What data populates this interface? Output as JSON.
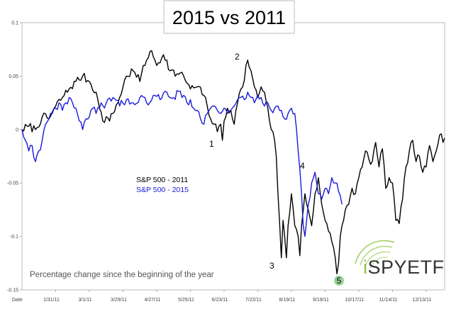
{
  "chart_data": {
    "type": "line",
    "title": "2015 vs 2011",
    "caption": "Percentage change since the beginning of the year",
    "xlabel": "Date",
    "ylabel": "",
    "ylim": [
      -0.15,
      0.1
    ],
    "y_ticks": [
      0.1,
      0.05,
      0,
      -0.05,
      -0.1,
      -0.15
    ],
    "y_tick_labels": [
      "0.1",
      "0.05",
      "0",
      "-0.05",
      "-0.1",
      "-0.15"
    ],
    "x_ticks": [
      "1/31/11",
      "3/1/11",
      "3/29/11",
      "4/27/11",
      "5/25/11",
      "6/23/11",
      "7/22/11",
      "8/19/11",
      "9/19/11",
      "10/17/11",
      "11/14/11",
      "12/13/11"
    ],
    "x_tick_index": [
      20,
      40,
      60,
      80,
      100,
      120,
      140,
      160,
      180,
      200,
      220,
      240
    ],
    "x_count": 252,
    "grid": false,
    "legend_position": "center-left",
    "series": [
      {
        "name": "S&P 500 - 2011",
        "color": "#000000",
        "anchors": [
          [
            0,
            0
          ],
          [
            4,
            0.003
          ],
          [
            8,
            0.0
          ],
          [
            12,
            0.012
          ],
          [
            16,
            0.01
          ],
          [
            20,
            0.022
          ],
          [
            24,
            0.03
          ],
          [
            28,
            0.038
          ],
          [
            32,
            0.045
          ],
          [
            36,
            0.05
          ],
          [
            40,
            0.045
          ],
          [
            44,
            0.035
          ],
          [
            46,
            0.02
          ],
          [
            48,
            0.008
          ],
          [
            50,
            0.012
          ],
          [
            52,
            0.008
          ],
          [
            54,
            0.015
          ],
          [
            58,
            0.03
          ],
          [
            62,
            0.05
          ],
          [
            66,
            0.055
          ],
          [
            70,
            0.045
          ],
          [
            72,
            0.06
          ],
          [
            74,
            0.065
          ],
          [
            76,
            0.073
          ],
          [
            78,
            0.068
          ],
          [
            80,
            0.06
          ],
          [
            84,
            0.07
          ],
          [
            86,
            0.065
          ],
          [
            88,
            0.055
          ],
          [
            92,
            0.052
          ],
          [
            96,
            0.05
          ],
          [
            100,
            0.038
          ],
          [
            104,
            0.04
          ],
          [
            108,
            0.032
          ],
          [
            110,
            0.022
          ],
          [
            112,
            0.01
          ],
          [
            114,
            0.005
          ],
          [
            116,
            -0.002
          ],
          [
            118,
            0.005
          ],
          [
            119,
            -0.01
          ],
          [
            120,
            0.008
          ],
          [
            122,
            0.02
          ],
          [
            124,
            0.018
          ],
          [
            126,
            0.005
          ],
          [
            128,
            0.025
          ],
          [
            130,
            0.038
          ],
          [
            132,
            0.046
          ],
          [
            133,
            0.06
          ],
          [
            134,
            0.065
          ],
          [
            135,
            0.058
          ],
          [
            136,
            0.055
          ],
          [
            138,
            0.04
          ],
          [
            140,
            0.03
          ],
          [
            142,
            0.04
          ],
          [
            144,
            0.035
          ],
          [
            146,
            0.02
          ],
          [
            148,
            0.0
          ],
          [
            150,
            -0.01
          ],
          [
            151,
            -0.025
          ],
          [
            152,
            -0.06
          ],
          [
            153,
            -0.088
          ],
          [
            154,
            -0.12
          ],
          [
            155,
            -0.085
          ],
          [
            156,
            -0.1
          ],
          [
            157,
            -0.12
          ],
          [
            158,
            -0.09
          ],
          [
            160,
            -0.06
          ],
          [
            162,
            -0.09
          ],
          [
            164,
            -0.1
          ],
          [
            165,
            -0.118
          ],
          [
            166,
            -0.09
          ],
          [
            168,
            -0.06
          ],
          [
            170,
            -0.075
          ],
          [
            172,
            -0.09
          ],
          [
            174,
            -0.06
          ],
          [
            176,
            -0.045
          ],
          [
            178,
            -0.07
          ],
          [
            180,
            -0.085
          ],
          [
            182,
            -0.095
          ],
          [
            184,
            -0.105
          ],
          [
            186,
            -0.12
          ],
          [
            187,
            -0.135
          ],
          [
            188,
            -0.125
          ],
          [
            189,
            -0.1
          ],
          [
            190,
            -0.09
          ],
          [
            192,
            -0.075
          ],
          [
            194,
            -0.07
          ],
          [
            196,
            -0.055
          ],
          [
            198,
            -0.06
          ],
          [
            200,
            -0.045
          ],
          [
            202,
            -0.035
          ],
          [
            204,
            -0.02
          ],
          [
            206,
            -0.028
          ],
          [
            208,
            -0.03
          ],
          [
            210,
            -0.012
          ],
          [
            212,
            -0.035
          ],
          [
            214,
            -0.018
          ],
          [
            216,
            -0.055
          ],
          [
            218,
            -0.045
          ],
          [
            220,
            -0.05
          ],
          [
            222,
            -0.085
          ],
          [
            224,
            -0.088
          ],
          [
            226,
            -0.065
          ],
          [
            228,
            -0.035
          ],
          [
            230,
            -0.02
          ],
          [
            232,
            -0.01
          ],
          [
            234,
            -0.03
          ],
          [
            236,
            -0.025
          ],
          [
            238,
            -0.04
          ],
          [
            240,
            -0.035
          ],
          [
            242,
            -0.015
          ],
          [
            244,
            -0.03
          ],
          [
            246,
            -0.02
          ],
          [
            248,
            -0.005
          ],
          [
            249,
            -0.004
          ],
          [
            250,
            -0.012
          ],
          [
            251,
            -0.008
          ]
        ]
      },
      {
        "name": "S&P 500 - 2015",
        "color": "#1a1adb",
        "anchors": [
          [
            0,
            0
          ],
          [
            2,
            -0.01
          ],
          [
            4,
            -0.02
          ],
          [
            6,
            -0.015
          ],
          [
            8,
            -0.03
          ],
          [
            10,
            -0.02
          ],
          [
            12,
            -0.01
          ],
          [
            14,
            0.005
          ],
          [
            16,
            0.01
          ],
          [
            18,
            0.015
          ],
          [
            20,
            0.02
          ],
          [
            22,
            0.025
          ],
          [
            24,
            0.018
          ],
          [
            26,
            0.025
          ],
          [
            28,
            0.03
          ],
          [
            30,
            0.025
          ],
          [
            32,
            0.02
          ],
          [
            34,
            0.008
          ],
          [
            36,
            0.0
          ],
          [
            38,
            0.01
          ],
          [
            40,
            0.012
          ],
          [
            42,
            0.02
          ],
          [
            44,
            0.015
          ],
          [
            46,
            0.02
          ],
          [
            50,
            0.025
          ],
          [
            54,
            0.03
          ],
          [
            58,
            0.022
          ],
          [
            62,
            0.028
          ],
          [
            66,
            0.025
          ],
          [
            70,
            0.03
          ],
          [
            74,
            0.025
          ],
          [
            78,
            0.032
          ],
          [
            82,
            0.028
          ],
          [
            86,
            0.035
          ],
          [
            90,
            0.03
          ],
          [
            94,
            0.036
          ],
          [
            96,
            0.032
          ],
          [
            98,
            0.025
          ],
          [
            100,
            0.028
          ],
          [
            102,
            0.02
          ],
          [
            104,
            0.018
          ],
          [
            106,
            0.01
          ],
          [
            108,
            0.005
          ],
          [
            110,
            0.015
          ],
          [
            112,
            0.02
          ],
          [
            114,
            0.022
          ],
          [
            116,
            0.018
          ],
          [
            118,
            0.015
          ],
          [
            120,
            0.02
          ],
          [
            122,
            0.015
          ],
          [
            124,
            0.018
          ],
          [
            126,
            0.022
          ],
          [
            128,
            0.028
          ],
          [
            130,
            0.03
          ],
          [
            132,
            0.028
          ],
          [
            134,
            0.035
          ],
          [
            136,
            0.03
          ],
          [
            138,
            0.025
          ],
          [
            140,
            0.032
          ],
          [
            142,
            0.03
          ],
          [
            144,
            0.022
          ],
          [
            146,
            0.025
          ],
          [
            148,
            0.018
          ],
          [
            150,
            0.02
          ],
          [
            152,
            0.022
          ],
          [
            154,
            0.018
          ],
          [
            156,
            0.01
          ],
          [
            158,
            0.015
          ],
          [
            160,
            0.02
          ],
          [
            162,
            0.015
          ],
          [
            164,
            -0.02
          ],
          [
            166,
            -0.06
          ],
          [
            167,
            -0.09
          ],
          [
            168,
            -0.1
          ],
          [
            169,
            -0.085
          ],
          [
            170,
            -0.07
          ],
          [
            172,
            -0.05
          ],
          [
            174,
            -0.04
          ],
          [
            176,
            -0.06
          ],
          [
            178,
            -0.065
          ],
          [
            180,
            -0.055
          ],
          [
            182,
            -0.06
          ],
          [
            184,
            -0.045
          ],
          [
            186,
            -0.05
          ],
          [
            188,
            -0.058
          ],
          [
            189,
            -0.062
          ],
          [
            190,
            -0.07
          ]
        ]
      }
    ]
  },
  "legend": {
    "items": [
      {
        "label": "S&P 500 - 2011",
        "color": "#000000"
      },
      {
        "label": "S&P 500 - 2015",
        "color": "#1a1adb"
      }
    ]
  },
  "annotations": [
    {
      "label": "1",
      "style": "plain"
    },
    {
      "label": "2",
      "style": "plain"
    },
    {
      "label": "3",
      "style": "plain"
    },
    {
      "label": "4",
      "style": "plain"
    },
    {
      "label": "5",
      "style": "circle",
      "color": "#9bd49b"
    }
  ],
  "logo": {
    "text": "iSPYETF",
    "color": "#8cc63f"
  }
}
